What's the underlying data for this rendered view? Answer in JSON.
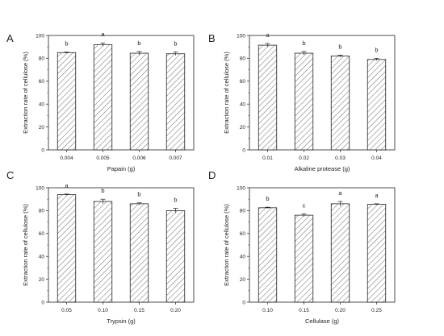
{
  "chart_data": [
    {
      "type": "bar",
      "panel": "A",
      "categories": [
        "0.004",
        "0.005",
        "0.006",
        "0.007"
      ],
      "values": [
        85,
        92,
        84.5,
        84
      ],
      "errors": [
        0.5,
        1.5,
        1.5,
        1.5
      ],
      "significance": [
        "b",
        "a",
        "b",
        "b"
      ],
      "xlabel": "Papain (g)",
      "ylabel": "Extraction rate of cellulose (%)",
      "ylim": [
        0,
        100
      ],
      "yticks": [
        "0",
        "20",
        "40",
        "60",
        "80",
        "100"
      ]
    },
    {
      "type": "bar",
      "panel": "B",
      "categories": [
        "0.01",
        "0.02",
        "0.03",
        "0.04"
      ],
      "values": [
        91.5,
        84.5,
        82,
        79
      ],
      "errors": [
        1.5,
        1.5,
        0.8,
        1.0
      ],
      "significance": [
        "a",
        "b",
        "b",
        "b"
      ],
      "xlabel": "Alkaline protease (g)",
      "ylabel": "Extraction rate of cellulose (%)",
      "ylim": [
        0,
        100
      ],
      "yticks": [
        "0",
        "20",
        "40",
        "60",
        "80",
        "100"
      ]
    },
    {
      "type": "bar",
      "panel": "C",
      "categories": [
        "0.05",
        "0.10",
        "0.15",
        "0.20"
      ],
      "values": [
        94,
        88,
        86,
        80
      ],
      "errors": [
        0.5,
        2.0,
        0.8,
        2.0
      ],
      "significance": [
        "a",
        "b",
        "b",
        "b"
      ],
      "xlabel": "Trypsin (g)",
      "ylabel": "Extraction rate of cellulose (%)",
      "ylim": [
        0,
        100
      ],
      "yticks": [
        "0",
        "20",
        "40",
        "60",
        "80",
        "100"
      ]
    },
    {
      "type": "bar",
      "panel": "D",
      "categories": [
        "0.10",
        "0.15",
        "0.20",
        "0.25"
      ],
      "values": [
        82.5,
        76,
        86,
        85.5
      ],
      "errors": [
        0.5,
        1.2,
        2.0,
        0.5
      ],
      "significance": [
        "b",
        "c",
        "a",
        "a"
      ],
      "xlabel": "Cellulase (g)",
      "ylabel": "Extraction rate of cellulose (%)",
      "ylim": [
        0,
        100
      ],
      "yticks": [
        "0",
        "20",
        "40",
        "60",
        "80",
        "100"
      ]
    }
  ]
}
